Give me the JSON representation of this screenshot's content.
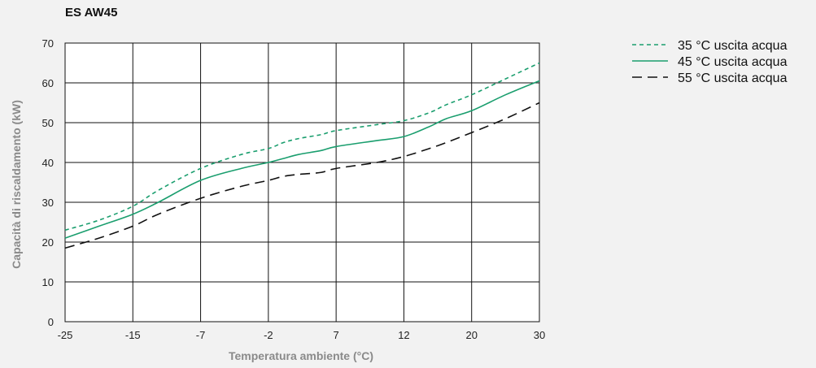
{
  "chart_data": {
    "type": "line",
    "title": "ES AW45",
    "xlabel": "Temperatura ambiente (°C)",
    "ylabel": "Capacità di riscaldamento (kW)",
    "x_ticks": [
      "-25",
      "-15",
      "-7",
      "-2",
      "7",
      "12",
      "20",
      "30"
    ],
    "y_ticks": [
      "0",
      "10",
      "20",
      "30",
      "40",
      "50",
      "60",
      "70"
    ],
    "ylim": [
      0,
      70
    ],
    "grid": true,
    "legend_position": "top-right",
    "series": [
      {
        "name": "35 °C uscita acqua",
        "style": "short-dash",
        "color": "#1a9e6e",
        "x": [
          -25,
          -20,
          -15,
          -12,
          -7,
          -4,
          -2,
          0,
          2,
          5,
          7,
          10,
          12,
          15,
          17,
          20,
          25,
          30
        ],
        "y": [
          23,
          25.5,
          29,
          33,
          38.5,
          42,
          43.5,
          45,
          46,
          47,
          48,
          49.5,
          50.5,
          52.5,
          54.5,
          57,
          61,
          65
        ]
      },
      {
        "name": "45 °C uscita acqua",
        "style": "solid",
        "color": "#1a9e6e",
        "x": [
          -25,
          -20,
          -15,
          -12,
          -7,
          -4,
          -2,
          0,
          2,
          5,
          7,
          10,
          12,
          15,
          17,
          20,
          25,
          30
        ],
        "y": [
          21,
          24,
          27,
          30,
          35.5,
          38.5,
          40,
          41,
          42,
          43,
          44,
          45.5,
          46.5,
          49,
          51,
          53,
          57,
          60.5
        ]
      },
      {
        "name": "55 °C uscita acqua",
        "style": "long-dash",
        "color": "#111111",
        "x": [
          -25,
          -20,
          -15,
          -12,
          -7,
          -4,
          -2,
          0,
          2,
          5,
          7,
          10,
          12,
          15,
          17,
          20,
          25,
          30
        ],
        "y": [
          18.5,
          21,
          24,
          27,
          31,
          34,
          35.5,
          36.5,
          37,
          37.5,
          38.5,
          40,
          41.5,
          43.5,
          45,
          47.5,
          51,
          55
        ]
      }
    ]
  }
}
